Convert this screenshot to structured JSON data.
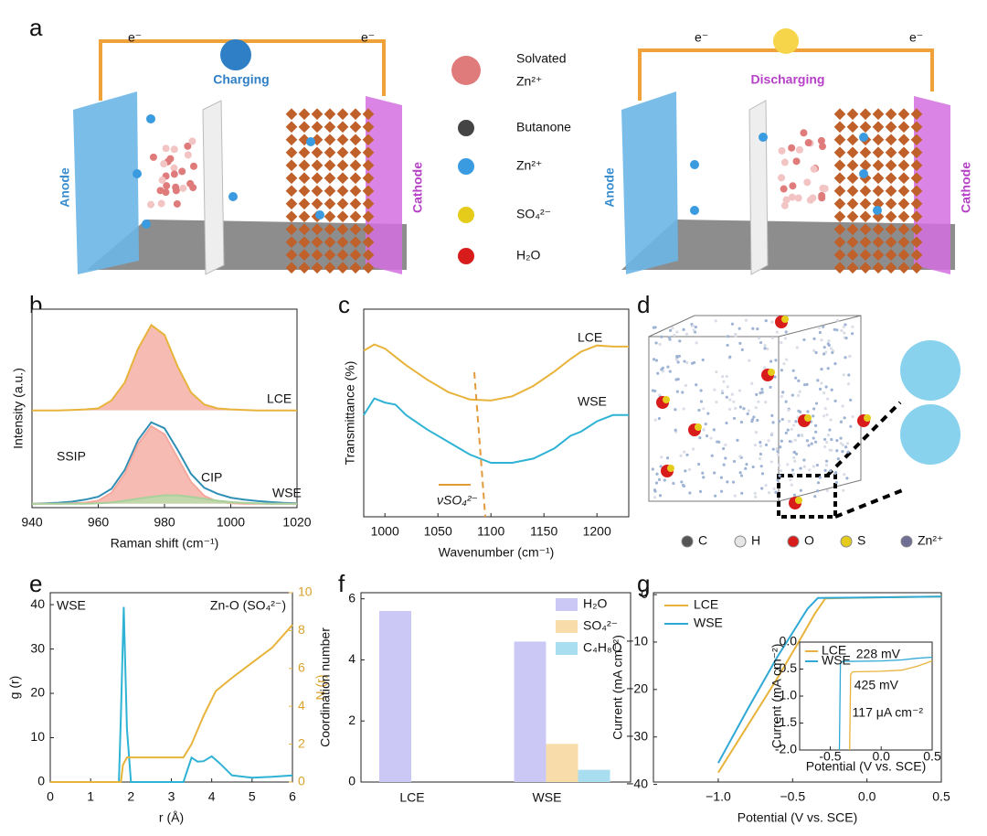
{
  "panel_labels": [
    "a",
    "b",
    "c",
    "d",
    "e",
    "f",
    "g"
  ],
  "panel_a": {
    "left": {
      "electron_left": "e⁻",
      "electron_right": "e⁻",
      "mode": "Charging",
      "anode": "Anode",
      "cathode": "Cathode"
    },
    "right": {
      "electron_left": "e⁻",
      "electron_right": "e⁻",
      "mode": "Discharging",
      "anode": "Anode",
      "cathode": "Cathode"
    },
    "legend": [
      [
        "Solvated",
        "Zn²⁺"
      ],
      [
        "Butanone"
      ],
      [
        "Zn²⁺"
      ],
      [
        "SO₄²⁻"
      ],
      [
        "H₂O"
      ]
    ]
  },
  "panel_d": {
    "legend": [
      "C",
      "H",
      "O",
      "S",
      "Zn²⁺"
    ],
    "colors": [
      "#555555",
      "#e6e6e6",
      "#d81c1c",
      "#e6cc1a",
      "#6e6e96"
    ]
  },
  "chart_data": [
    {
      "type": "line",
      "xlabel": "Raman shift (cm⁻¹)",
      "ylabel": "Intensity (a.u.)",
      "x": [
        940,
        944,
        948,
        952,
        956,
        960,
        964,
        968,
        972,
        976,
        980,
        984,
        988,
        992,
        996,
        1000,
        1004,
        1008,
        1012,
        1016,
        1020
      ],
      "xlim": [
        940,
        1020
      ],
      "xticks": [
        940,
        960,
        980,
        1000,
        1020
      ],
      "ylim": [
        0,
        10
      ],
      "series": [
        {
          "name": "LCE",
          "color": "#e8b33a",
          "fill": "#f4b0a6",
          "values": [
            4.9,
            4.9,
            4.9,
            4.92,
            4.95,
            5.0,
            5.4,
            6.3,
            8.0,
            9.2,
            8.7,
            7.1,
            5.8,
            5.2,
            5.0,
            4.95,
            4.92,
            4.9,
            4.9,
            4.9,
            4.9
          ]
        },
        {
          "name": "WSE",
          "color": "#2f8fb5",
          "values": [
            0.2,
            0.22,
            0.25,
            0.3,
            0.4,
            0.55,
            0.95,
            1.9,
            3.4,
            4.3,
            4.0,
            2.9,
            1.7,
            1.0,
            0.7,
            0.5,
            0.4,
            0.33,
            0.28,
            0.24,
            0.22
          ]
        },
        {
          "name": "SSIP",
          "color": "#f4a89e",
          "fill": "#f4b0a6",
          "values": [
            0.2,
            0.2,
            0.2,
            0.22,
            0.25,
            0.35,
            0.75,
            1.7,
            3.2,
            4.1,
            3.7,
            2.5,
            1.3,
            0.6,
            0.3,
            0.22,
            0.2,
            0.2,
            0.2,
            0.2,
            0.2
          ]
        },
        {
          "name": "CIP",
          "color": "#a9cf9a",
          "fill": "#b9dca8",
          "values": [
            0.2,
            0.2,
            0.2,
            0.2,
            0.2,
            0.22,
            0.26,
            0.35,
            0.45,
            0.55,
            0.62,
            0.62,
            0.55,
            0.45,
            0.35,
            0.28,
            0.24,
            0.22,
            0.2,
            0.2,
            0.2
          ]
        }
      ]
    },
    {
      "type": "line",
      "xlabel": "Wavenumber (cm⁻¹)",
      "ylabel": "Transmittance (%)",
      "annotation": "νSO₄²⁻",
      "x": [
        980,
        990,
        1000,
        1010,
        1020,
        1040,
        1060,
        1080,
        1100,
        1120,
        1140,
        1160,
        1175,
        1185,
        1200,
        1215,
        1230
      ],
      "xlim": [
        980,
        1230
      ],
      "xticks": [
        1000,
        1050,
        1100,
        1150,
        1200
      ],
      "ylim": [
        0,
        10
      ],
      "series": [
        {
          "name": "LCE",
          "color": "#e8b33a",
          "values": [
            8.0,
            8.3,
            8.1,
            7.7,
            7.3,
            6.6,
            6.0,
            5.65,
            5.6,
            5.8,
            6.3,
            7.0,
            7.6,
            7.95,
            8.25,
            8.2,
            8.2
          ]
        },
        {
          "name": "WSE",
          "color": "#2fb3d5",
          "values": [
            4.9,
            5.7,
            5.5,
            5.4,
            4.9,
            4.2,
            3.6,
            3.0,
            2.6,
            2.6,
            2.8,
            3.3,
            3.9,
            4.1,
            4.6,
            4.9,
            4.9
          ]
        }
      ]
    },
    {
      "type": "line",
      "xlabel": "r (Å)",
      "ylabel": "g (r)",
      "y2label": "N (r)",
      "annotations": [
        "WSE",
        "Zn-O (SO₄²⁻)"
      ],
      "xlim": [
        0,
        6
      ],
      "xticks": [
        0,
        1,
        2,
        3,
        4,
        5,
        6
      ],
      "ylim": [
        0,
        42.7
      ],
      "yticks": [
        0,
        10,
        20,
        30,
        40
      ],
      "y2lim": [
        0,
        10
      ],
      "y2ticks": [
        0,
        2,
        4,
        6,
        8,
        10
      ],
      "series": [
        {
          "name": "g (r)",
          "color": "#2fb3d5",
          "x": [
            0,
            1.7,
            1.75,
            1.82,
            1.9,
            2.0,
            3.3,
            3.5,
            3.65,
            3.8,
            4.0,
            4.2,
            4.5,
            5,
            5.5,
            6
          ],
          "values": [
            0,
            0,
            15,
            39.5,
            12,
            0,
            0,
            5.5,
            4.6,
            4.7,
            5.8,
            4.2,
            1.5,
            1.0,
            1.2,
            1.5
          ]
        },
        {
          "name": "N (r)",
          "color": "#e8b33a",
          "axis": "y2",
          "x": [
            0,
            1.75,
            1.8,
            1.9,
            3.3,
            3.5,
            3.8,
            4.1,
            4.5,
            5,
            5.5,
            6
          ],
          "values": [
            0,
            0,
            0.9,
            1.3,
            1.3,
            2.0,
            3.5,
            4.8,
            5.5,
            6.3,
            7.1,
            8.3
          ]
        }
      ]
    },
    {
      "type": "bar",
      "ylabel": "Coordination number",
      "categories": [
        "LCE",
        "WSE"
      ],
      "ylim": [
        0,
        6.2
      ],
      "yticks": [
        0,
        2,
        4,
        6
      ],
      "series": [
        {
          "name": "H₂O",
          "color": "#cbc8f6",
          "values": [
            5.6,
            4.6
          ]
        },
        {
          "name": "SO₄²⁻",
          "color": "#f8dcaa",
          "values": [
            0,
            1.25
          ]
        },
        {
          "name": "C₄H₈O",
          "color": "#a8def0",
          "values": [
            0,
            0.4
          ]
        }
      ]
    },
    {
      "type": "line",
      "xlabel": "Potential (V vs. SCE)",
      "ylabel": "Current (mA cm⁻²)",
      "xlim": [
        -1.436,
        0.5
      ],
      "xticks": [
        {
          "value": -1.0,
          "label": "−1.0"
        },
        {
          "value": -0.5,
          "label": "−0.5"
        },
        {
          "value": 0.0,
          "label": "0.0"
        },
        0.5
      ],
      "ylim": [
        -39.5,
        0.4
      ],
      "yticks": [
        0,
        {
          "value": -10,
          "label": "−10"
        },
        {
          "value": -20,
          "label": "−20"
        },
        {
          "value": -30,
          "label": "−30"
        },
        {
          "value": -40,
          "label": "−40"
        }
      ],
      "legend": "upper left",
      "series": [
        {
          "name": "LCE",
          "color": "#e8b33a",
          "x": [
            -1.0,
            -0.8,
            -0.6,
            -0.45,
            -0.35,
            -0.28,
            0,
            0.5
          ],
          "values": [
            -37.5,
            -27.5,
            -17.5,
            -9.5,
            -4,
            -0.8,
            -0.6,
            -0.4
          ]
        },
        {
          "name": "WSE",
          "color": "#2fa8d5",
          "x": [
            -1.0,
            -0.8,
            -0.6,
            -0.5,
            -0.4,
            -0.33,
            0,
            0.5
          ],
          "values": [
            -35.5,
            -24,
            -13,
            -8,
            -3,
            -0.7,
            -0.6,
            -0.4
          ]
        }
      ]
    },
    {
      "type": "line",
      "xlabel": "Potential (V vs. SCE)",
      "ylabel": "Current (mA cm⁻²)",
      "annotations": [
        "228 mV",
        "425 mV",
        "117 μA cm⁻²"
      ],
      "xlim": [
        -0.8,
        0.5
      ],
      "xticks": [
        {
          "value": -0.5,
          "label": "-0.5"
        },
        {
          "value": 0.0,
          "label": "0.0"
        },
        0.5
      ],
      "ylim": [
        -2.0,
        0
      ],
      "yticks": [
        {
          "value": 0,
          "label": "0.0"
        },
        -0.5,
        {
          "value": -1,
          "label": "-1.0"
        },
        -1.5,
        {
          "value": -2,
          "label": "-2.0"
        }
      ],
      "legend": "upper left",
      "series": [
        {
          "name": "LCE",
          "color": "#e8b33a",
          "x": [
            -0.31,
            -0.3,
            -0.28,
            0.0,
            0.2,
            0.35,
            0.5
          ],
          "values": [
            -2.0,
            -0.6,
            -0.55,
            -0.54,
            -0.52,
            -0.45,
            -0.35
          ]
        },
        {
          "name": "WSE",
          "color": "#2fa8d5",
          "x": [
            -0.41,
            -0.4,
            -0.38,
            0.0,
            0.2,
            0.35,
            0.5
          ],
          "values": [
            -2.0,
            -0.4,
            -0.36,
            -0.35,
            -0.33,
            -0.3,
            -0.28
          ]
        }
      ]
    }
  ]
}
